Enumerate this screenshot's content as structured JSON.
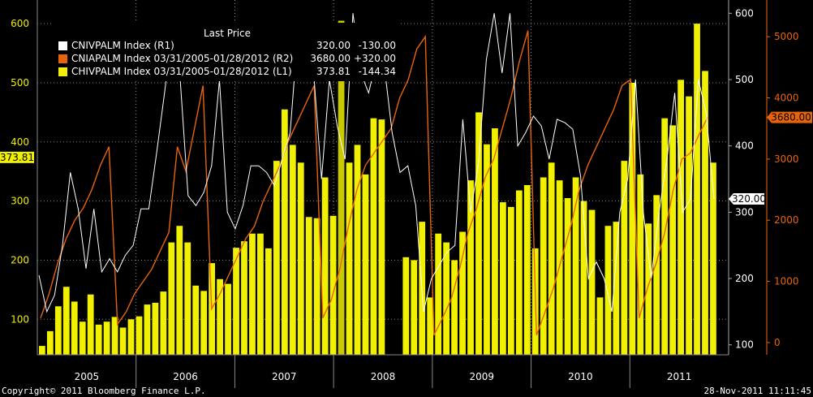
{
  "chart_data": {
    "type": "bar",
    "legend": {
      "header": "Last Price",
      "entries": [
        {
          "label": "CNIVPALM Index  (R1)",
          "last": "320.00",
          "change": "-130.00",
          "color": "#ffffff"
        },
        {
          "label": "CNIAPALM Index 03/31/2005-01/28/2012  (R2)",
          "last": "3680.00",
          "change": "+320.00",
          "color": "#e8640c"
        },
        {
          "label": "CHIVPALM Index 03/31/2005-01/28/2012  (L1)",
          "last": "373.81",
          "change": "-144.34",
          "color": "#f0f000"
        }
      ]
    },
    "years": [
      "2005",
      "2006",
      "2007",
      "2008",
      "2009",
      "2010",
      "2011"
    ],
    "y_left": {
      "ticks": [
        100,
        200,
        300,
        400,
        500,
        600
      ],
      "range": [
        40,
        640
      ],
      "color": "#f0f000"
    },
    "y_right1": {
      "ticks": [
        100,
        200,
        300,
        400,
        500,
        600
      ],
      "range": [
        85,
        620
      ],
      "color": "#ffffff"
    },
    "y_right2": {
      "ticks": [
        0,
        1000,
        2000,
        3000,
        4000,
        5000
      ],
      "range": [
        -200,
        5600
      ],
      "color": "#e8640c"
    },
    "callouts": {
      "left": "373.81",
      "right1": "320.00",
      "right2": "3680.00"
    },
    "bars": [
      55,
      80,
      122,
      155,
      130,
      96,
      142,
      91,
      96,
      104,
      86,
      100,
      105,
      125,
      128,
      147,
      230,
      258,
      230,
      157,
      148,
      195,
      168,
      160,
      221,
      232,
      245,
      245,
      220,
      368,
      455,
      395,
      365,
      273,
      271,
      340,
      275,
      605,
      365,
      395,
      345,
      440,
      438,
      0,
      0,
      205,
      200,
      265,
      137,
      245,
      230,
      200,
      248,
      335,
      450,
      396,
      423,
      298,
      290,
      318,
      327,
      220,
      340,
      365,
      335,
      305,
      340,
      300,
      285,
      137,
      258,
      265,
      368,
      500,
      345,
      262,
      310,
      440,
      428,
      505,
      477,
      600,
      520,
      365
    ],
    "highlight_bar": 37,
    "white_line": [
      205,
      150,
      175,
      250,
      360,
      305,
      215,
      305,
      210,
      230,
      210,
      235,
      250,
      305,
      305,
      390,
      480,
      575,
      500,
      325,
      310,
      330,
      370,
      500,
      300,
      275,
      310,
      370,
      370,
      360,
      340,
      380,
      420,
      575,
      500,
      510,
      350,
      500,
      430,
      380,
      600,
      510,
      480,
      530,
      520,
      420,
      360,
      370,
      310,
      150,
      200,
      220,
      240,
      250,
      440,
      300,
      375,
      530,
      600,
      510,
      600,
      400,
      420,
      445,
      430,
      380,
      440,
      435,
      425,
      355,
      200,
      225,
      200,
      150,
      300,
      350,
      500,
      300,
      200,
      300,
      380,
      480,
      300,
      320,
      500,
      450,
      320
    ],
    "orange_line": [
      400,
      800,
      1300,
      1700,
      2000,
      2200,
      2500,
      2900,
      3200,
      300,
      500,
      800,
      1000,
      1200,
      1500,
      1800,
      3200,
      2800,
      3500,
      4200,
      550,
      800,
      1100,
      1400,
      1700,
      1900,
      2300,
      2600,
      2900,
      3300,
      3600,
      3900,
      4200,
      400,
      700,
      1200,
      1900,
      2500,
      2900,
      3100,
      3300,
      3500,
      4000,
      4300,
      4800,
      5000,
      120,
      400,
      700,
      1200,
      1800,
      2200,
      2700,
      3000,
      3500,
      4000,
      4600,
      5100,
      120,
      500,
      900,
      1400,
      1900,
      2500,
      2900,
      3200,
      3500,
      3800,
      4200,
      4300,
      400,
      900,
      1300,
      1800,
      2500,
      3000,
      3100,
      3400,
      3680
    ],
    "footer": {
      "copyright": "Copyright© 2011 Bloomberg Finance L.P.",
      "timestamp": "28-Nov-2011 11:11:45"
    }
  }
}
